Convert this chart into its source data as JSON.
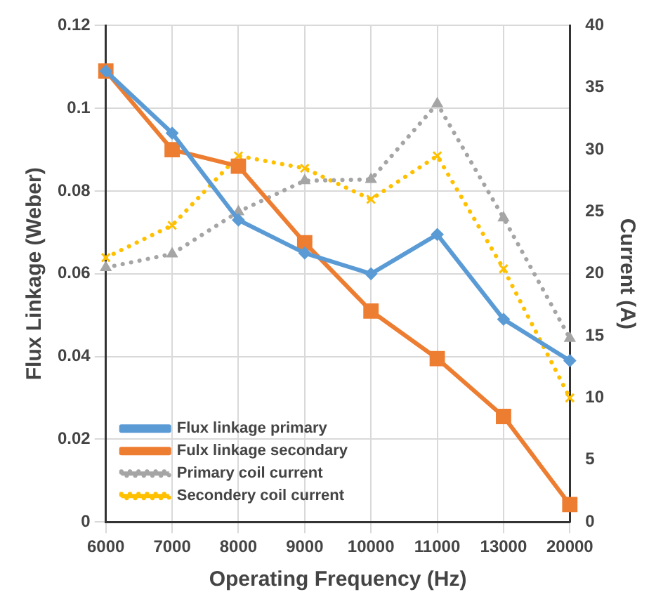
{
  "chart_data": {
    "type": "line",
    "xlabel": "Operating Frequency (Hz)",
    "ylabel": "Flux Linkage (Weber)",
    "y2label": "Current (A)",
    "categories": [
      "6000",
      "7000",
      "8000",
      "9000",
      "10000",
      "11000",
      "13000",
      "20000"
    ],
    "series": [
      {
        "name": "Flux linkage primary",
        "color": "#5b9bd5",
        "marker": "diamond",
        "line_style": "solid",
        "values": [
          0.109,
          0.094,
          0.073,
          0.065,
          0.06,
          0.0695,
          0.049,
          0.039
        ]
      },
      {
        "name": "Fulx linkage secondary",
        "color": "#ed7d31",
        "marker": "square",
        "line_style": "solid",
        "values": [
          0.109,
          0.09,
          0.086,
          0.0675,
          0.051,
          0.0395,
          0.0255,
          0.0042
        ]
      },
      {
        "name": "Primary coil current",
        "color": "#a5a5a5",
        "marker": "triangle",
        "line_style": "dotted",
        "axis": "y2",
        "values": [
          20.5,
          21.6,
          25.0,
          27.5,
          27.6,
          33.7,
          24.5,
          14.8
        ]
      },
      {
        "name": "Secondery coil current",
        "color": "#ffc000",
        "marker": "cross",
        "line_style": "dotted",
        "axis": "y2",
        "values": [
          21.3,
          23.9,
          29.5,
          28.5,
          26.0,
          29.5,
          20.4,
          10.0
        ]
      }
    ],
    "ylim": [
      0,
      0.12
    ],
    "yticks": [
      0,
      0.02,
      0.04,
      0.06,
      0.08,
      0.1,
      0.12
    ],
    "y2lim": [
      0,
      40
    ],
    "y2ticks": [
      0,
      5,
      10,
      15,
      20,
      25,
      30,
      35,
      40
    ],
    "grid": true,
    "legend": "bottom left"
  }
}
